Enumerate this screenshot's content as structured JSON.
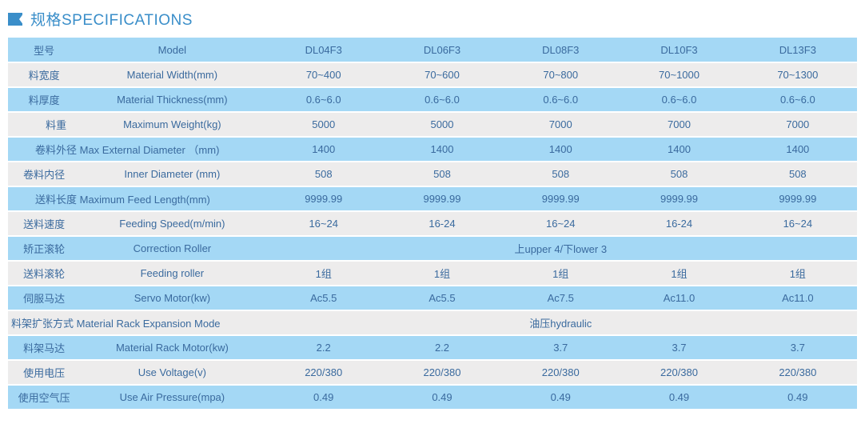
{
  "header": {
    "title": "规格SPECIFICATIONS"
  },
  "colors": {
    "row_odd": "#a4d8f5",
    "row_even": "#edecec",
    "text": "#3a6a9e",
    "accent": "#3a8ec9",
    "border": "#ffffff"
  },
  "table": {
    "columns": [
      "DL04F3",
      "DL06F3",
      "DL08F3",
      "DL10F3",
      "DL13F3"
    ],
    "rows": [
      {
        "cn": "型号",
        "en": "Model",
        "values": [
          "DL04F3",
          "DL06F3",
          "DL08F3",
          "DL10F3",
          "DL13F3"
        ],
        "header": true
      },
      {
        "cn": "料宽度",
        "en": "Material Width(mm)",
        "values": [
          "70~400",
          "70~600",
          "70~800",
          "70~1000",
          "70~1300"
        ]
      },
      {
        "cn": "料厚度",
        "en": "Material Thickness(mm)",
        "values": [
          "0.6~6.0",
          "0.6~6.0",
          "0.6~6.0",
          "0.6~6.0",
          "0.6~6.0"
        ]
      },
      {
        "cn": "料重",
        "en": "Maximum Weight(kg)",
        "values": [
          "5000",
          "5000",
          "7000",
          "7000",
          "7000"
        ],
        "indent": 1
      },
      {
        "cn": "卷料外径",
        "en": "Max External Diameter （mm)",
        "values": [
          "1400",
          "1400",
          "1400",
          "1400",
          "1400"
        ],
        "indent": 2,
        "combined": true
      },
      {
        "cn": "卷料内径",
        "en": "Inner Diameter (mm)",
        "values": [
          "508",
          "508",
          "508",
          "508",
          "508"
        ]
      },
      {
        "cn": "送料长度",
        "en": "Maximum Feed Length(mm)",
        "values": [
          "9999.99",
          "9999.99",
          "9999.99",
          "9999.99",
          "9999.99"
        ],
        "indent": 2,
        "combined": true
      },
      {
        "cn": "送料速度",
        "en": "Feeding Speed(m/min)",
        "values": [
          "16~24",
          "16-24",
          "16~24",
          "16-24",
          "16~24"
        ]
      },
      {
        "cn": "矫正滚轮",
        "en": "Correction Roller",
        "merged": "上upper 4/下lower 3"
      },
      {
        "cn": "送料滚轮",
        "en": "Feeding roller",
        "values": [
          "1组",
          "1组",
          "1组",
          "1组",
          "1组"
        ]
      },
      {
        "cn": "伺服马达",
        "en": "Servo Motor(kw)",
        "values": [
          "Ac5.5",
          "Ac5.5",
          "Ac7.5",
          "Ac11.0",
          "Ac11.0"
        ]
      },
      {
        "cn": "料架扩张方式",
        "en": "Material Rack Expansion Mode",
        "merged": "油压hydraulic",
        "combined": true
      },
      {
        "cn": "料架马达",
        "en": "Material Rack Motor(kw)",
        "values": [
          "2.2",
          "2.2",
          "3.7",
          "3.7",
          "3.7"
        ]
      },
      {
        "cn": "使用电压",
        "en": "Use Voltage(v)",
        "values": [
          "220/380",
          "220/380",
          "220/380",
          "220/380",
          "220/380"
        ]
      },
      {
        "cn": "使用空气压",
        "en": "Use Air Pressure(mpa)",
        "values": [
          "0.49",
          "0.49",
          "0.49",
          "0.49",
          "0.49"
        ]
      }
    ]
  }
}
